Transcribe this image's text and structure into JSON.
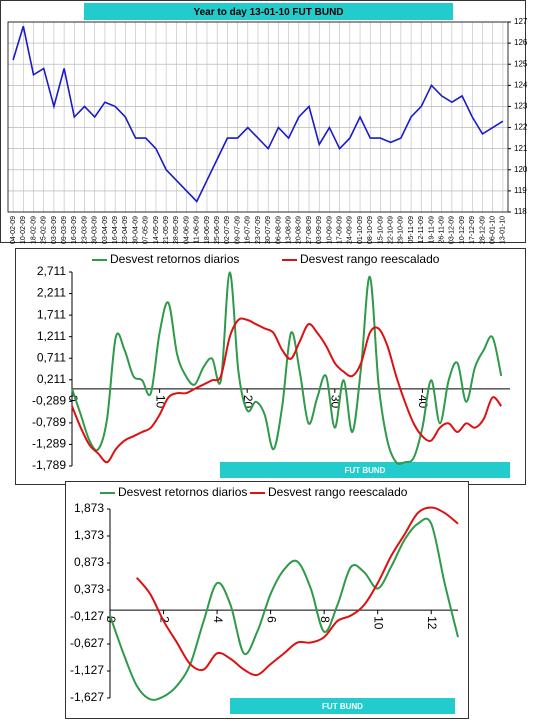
{
  "chart_data": [
    {
      "type": "line",
      "title": "Year to day  13-01-10    FUT BUND",
      "categories": [
        "04-02-09",
        "10-02-09",
        "18-02-09",
        "25-02-09",
        "03-03-09",
        "09-03-09",
        "16-03-09",
        "23-03-09",
        "30-03-09",
        "03-04-09",
        "16-04-09",
        "23-04-09",
        "30-04-09",
        "07-05-09",
        "14-05-09",
        "21-05-09",
        "28-05-09",
        "04-06-09",
        "11-06-09",
        "18-06-09",
        "25-06-09",
        "02-07-09",
        "09-07-09",
        "16-07-09",
        "23-07-09",
        "30-07-09",
        "06-08-09",
        "13-08-09",
        "20-08-09",
        "27-08-09",
        "03-09-09",
        "10-09-09",
        "17-09-09",
        "24-09-09",
        "01-10-09",
        "08-10-09",
        "15-10-09",
        "22-10-09",
        "29-10-09",
        "05-11-09",
        "12-11-09",
        "19-11-09",
        "26-11-09",
        "03-12-09",
        "10-12-09",
        "17-12-09",
        "28-12-09",
        "06-01-10",
        "13-01-10"
      ],
      "series": [
        {
          "color": "#1a1acc",
          "values": [
            125.2,
            126.8,
            124.5,
            124.8,
            123,
            124.8,
            122.5,
            123,
            122.5,
            123.2,
            123,
            122.5,
            121.5,
            121.5,
            121,
            120,
            119.5,
            119,
            118.5,
            119.5,
            120.5,
            121.5,
            121.5,
            122,
            121.5,
            121,
            122,
            121.5,
            122.5,
            123,
            121.2,
            122,
            121,
            121.5,
            122.5,
            121.5,
            121.5,
            121.3,
            121.5,
            122.5,
            123,
            124,
            123.5,
            123.2,
            123.5,
            122.5,
            121.7,
            122,
            122.3
          ]
        }
      ],
      "ylim": [
        118,
        127
      ],
      "yticks": [
        118,
        119,
        120,
        121,
        122,
        123,
        124,
        125,
        126,
        127
      ],
      "grid": true,
      "y_axis_side": "right"
    },
    {
      "type": "line",
      "smooth": true,
      "annotation": "FUT BUND",
      "legend": "top",
      "x": [
        0,
        1,
        2,
        3,
        4,
        5,
        6,
        7,
        8,
        9,
        10,
        11,
        12,
        13,
        14,
        15,
        16,
        17,
        18,
        19,
        20,
        21,
        22,
        23,
        24,
        25,
        26,
        27,
        28,
        29,
        30,
        31,
        32,
        33,
        34,
        35,
        36,
        37,
        38,
        39,
        40,
        41,
        42,
        43,
        44,
        45,
        46,
        47,
        48,
        49
      ],
      "series": [
        {
          "name": "Desvest retornos diarios",
          "color": "#2e9a4a",
          "values": [
            0,
            -0.6,
            -1.2,
            -1.4,
            -0.7,
            1.2,
            0.9,
            0.3,
            0.2,
            -0.1,
            1.3,
            2.0,
            0.8,
            0.3,
            0.1,
            0.5,
            0.7,
            0.2,
            2.7,
            0.4,
            -0.5,
            -0.3,
            -0.6,
            -1.4,
            -0.4,
            1.3,
            0.4,
            -0.8,
            -0.2,
            0.3,
            -0.9,
            0.2,
            -1.0,
            0.5,
            2.6,
            0.1,
            -1.2,
            -1.7,
            -1.7,
            -1.6,
            -0.9,
            0.2,
            -0.8,
            0.2,
            0.6,
            -0.3,
            0.5,
            0.9,
            1.2,
            0.3
          ]
        },
        {
          "name": "Desvest rango reescalado",
          "color": "#dd1111",
          "values": [
            -0.4,
            -0.9,
            -1.3,
            -1.5,
            -1.7,
            -1.4,
            -1.2,
            -1.1,
            -1.0,
            -0.9,
            -0.6,
            -0.2,
            -0.1,
            -0.1,
            0.0,
            0.1,
            0.2,
            0.3,
            1.2,
            1.6,
            1.6,
            1.5,
            1.4,
            1.3,
            0.9,
            0.7,
            1.1,
            1.5,
            1.3,
            1.0,
            0.6,
            0.4,
            0.3,
            0.6,
            1.3,
            1.4,
            1.0,
            0.3,
            -0.3,
            -0.8,
            -1.1,
            -1.2,
            -0.9,
            -0.8,
            -1.0,
            -0.8,
            -0.9,
            -0.7,
            -0.2,
            -0.4
          ]
        }
      ],
      "xlim": [
        0,
        50
      ],
      "xticks": [
        0,
        10,
        20,
        30,
        40
      ],
      "ylim": [
        -1.789,
        2.711
      ],
      "yticks": [
        {
          "value": -1.789,
          "label": "-1,789"
        },
        {
          "value": -1.289,
          "label": "-1,289"
        },
        {
          "value": -0.789,
          "label": "-0,789"
        },
        {
          "value": -0.289,
          "label": "-0,289"
        },
        {
          "value": 0.211,
          "label": "0,211"
        },
        {
          "value": 0.711,
          "label": "0,711"
        },
        {
          "value": 1.211,
          "label": "1,211"
        },
        {
          "value": 1.711,
          "label": "1,711"
        },
        {
          "value": 2.211,
          "label": "2,211"
        },
        {
          "value": 2.711,
          "label": "2,711"
        }
      ]
    },
    {
      "type": "line",
      "smooth": true,
      "annotation": "FUT BUND",
      "legend": "top",
      "x": [
        0,
        0.5,
        1,
        1.5,
        2,
        2.5,
        3,
        3.5,
        4,
        4.5,
        5,
        5.5,
        6,
        6.5,
        7,
        7.5,
        8,
        8.5,
        9,
        9.5,
        10,
        10.5,
        11,
        11.5,
        12,
        12.5,
        13
      ],
      "series": [
        {
          "name": "Desvest retornos diarios",
          "color": "#2e9a4a",
          "values": [
            -0.1,
            -0.8,
            -1.4,
            -1.65,
            -1.6,
            -1.4,
            -1.0,
            -0.2,
            0.5,
            0.1,
            -0.8,
            -0.4,
            0.3,
            0.75,
            0.9,
            0.4,
            -0.4,
            0.1,
            0.8,
            0.7,
            0.4,
            0.8,
            1.3,
            1.6,
            1.6,
            0.5,
            -0.5
          ]
        },
        {
          "name": "Desvest rango reescalado",
          "color": "#dd1111",
          "values": [
            null,
            null,
            0.6,
            0.3,
            -0.2,
            -0.6,
            -1.0,
            -1.1,
            -0.8,
            -0.9,
            -1.1,
            -1.2,
            -1.0,
            -0.8,
            -0.6,
            -0.6,
            -0.5,
            -0.2,
            -0.1,
            0.1,
            0.5,
            1.0,
            1.4,
            1.8,
            1.9,
            1.8,
            1.6
          ]
        }
      ],
      "xlim": [
        0,
        13
      ],
      "xticks": [
        0,
        2,
        4,
        6,
        8,
        10,
        12
      ],
      "ylim": [
        -1.627,
        1.873
      ],
      "yticks": [
        {
          "value": -1.627,
          "label": "-1,627"
        },
        {
          "value": -1.127,
          "label": "-1,127"
        },
        {
          "value": -0.627,
          "label": "-0,627"
        },
        {
          "value": -0.127,
          "label": "-0,127"
        },
        {
          "value": 0.373,
          "label": "0,373"
        },
        {
          "value": 0.873,
          "label": "0,873"
        },
        {
          "value": 1.373,
          "label": "1,373"
        },
        {
          "value": 1.873,
          "label": "1,873"
        }
      ]
    }
  ]
}
